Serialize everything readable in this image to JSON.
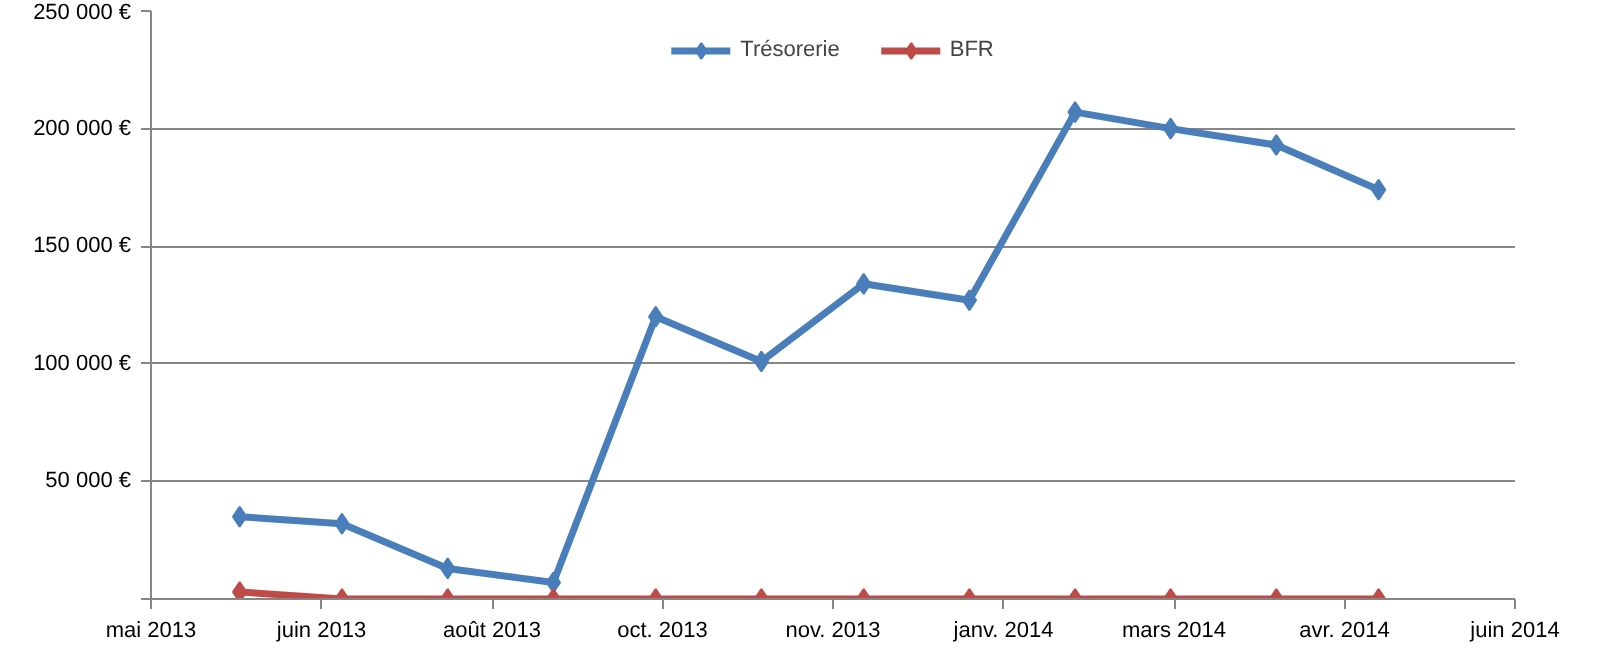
{
  "chart_data": {
    "type": "line",
    "marker": "diamond",
    "line_style": "solid",
    "grid": "y",
    "legend": "top",
    "x": [
      "2013-05-31",
      "2013-06-30",
      "2013-07-31",
      "2013-08-31",
      "2013-09-30",
      "2013-10-31",
      "2013-11-30",
      "2013-12-31",
      "2014-01-31",
      "2014-02-28",
      "2014-03-31",
      "2014-04-30"
    ],
    "series": [
      {
        "name": "Trésorerie",
        "color": "#4a7ebb",
        "values": [
          35000,
          32000,
          13000,
          7000,
          120000,
          101000,
          134000,
          127000,
          207000,
          200000,
          193000,
          174000
        ]
      },
      {
        "name": "BFR",
        "color": "#be4b48",
        "values": [
          3000,
          0,
          0,
          0,
          0,
          0,
          0,
          0,
          0,
          0,
          0,
          0
        ]
      }
    ],
    "xlim": [
      "2013-05-05",
      "2014-06-09"
    ],
    "xticks": [
      {
        "value": "2013-05-05",
        "label": "mai 2013"
      },
      {
        "value": "2013-06-24",
        "label": "juin 2013"
      },
      {
        "value": "2013-08-13",
        "label": "août 2013"
      },
      {
        "value": "2013-10-02",
        "label": "oct. 2013"
      },
      {
        "value": "2013-11-21",
        "label": "nov. 2013"
      },
      {
        "value": "2014-01-10",
        "label": "janv. 2014"
      },
      {
        "value": "2014-03-01",
        "label": "mars 2014"
      },
      {
        "value": "2014-04-20",
        "label": "avr. 2014"
      },
      {
        "value": "2014-06-09",
        "label": "juin 2014"
      }
    ],
    "ylim": [
      0,
      250000
    ],
    "yticks": [
      {
        "value": 0,
        "label": null
      },
      {
        "value": 50000,
        "label": "50 000 €"
      },
      {
        "value": 100000,
        "label": "100 000 €"
      },
      {
        "value": 150000,
        "label": "150 000 €"
      },
      {
        "value": 200000,
        "label": "200 000 €"
      },
      {
        "value": 250000,
        "label": "250 000 €"
      }
    ]
  }
}
